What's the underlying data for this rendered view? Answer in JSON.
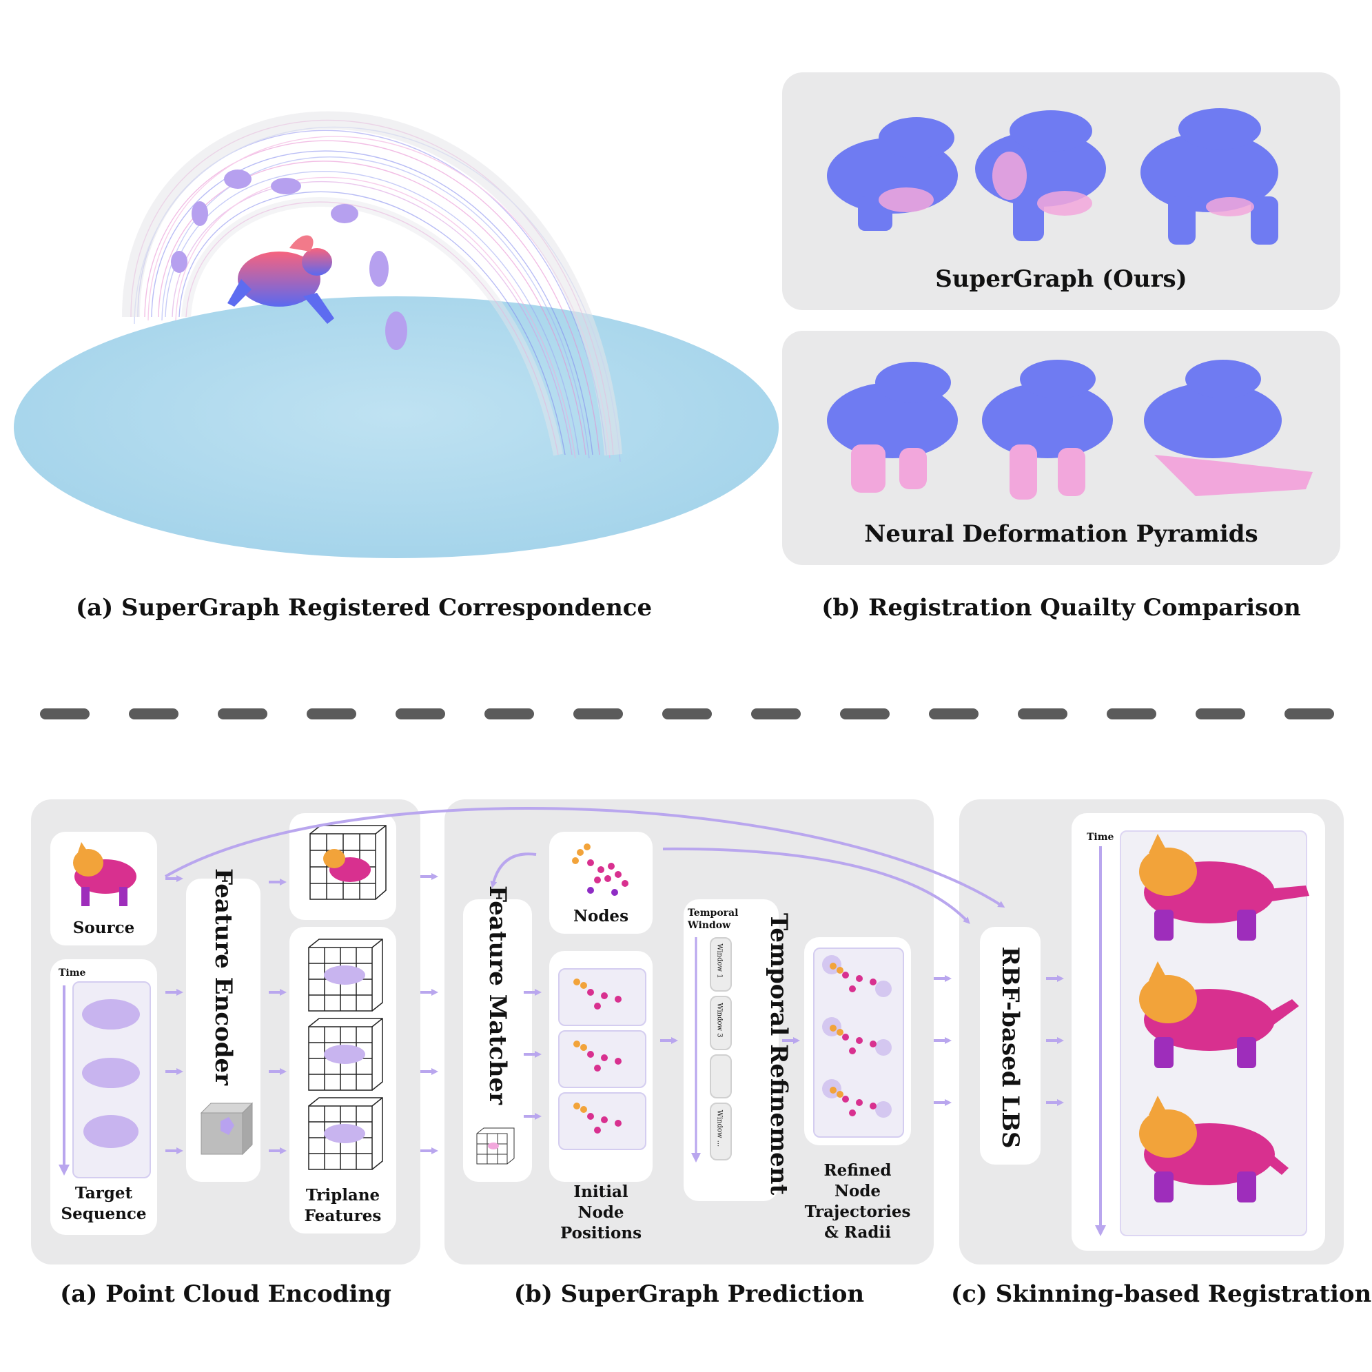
{
  "top": {
    "captions": {
      "left": "(a) SuperGraph Registered Correspondence",
      "right": "(b) Registration Quailty Comparison"
    },
    "methods": [
      "SuperGraph (Ours)",
      "Neural Deformation Pyramids"
    ]
  },
  "pipeline": {
    "captions": {
      "a": "(a) Point Cloud Encoding",
      "b": "(b) SuperGraph Prediction",
      "c": "(c) Skinning-based Registration"
    },
    "labels": {
      "source": "Source",
      "time": "Time",
      "target": [
        "Target",
        "Sequence"
      ],
      "feature_encoder": "Feature Encoder",
      "triplane": [
        "Triplane",
        "Features"
      ],
      "feature_matcher": "Feature Matcher",
      "nodes": "Nodes",
      "initial": [
        "Initial",
        "Node",
        "Positions"
      ],
      "temporal_window": [
        "Temporal",
        "Window"
      ],
      "windows": [
        "Window 1",
        "Window 3",
        "Window ..."
      ],
      "temporal_refinement": "Temporal Refinement",
      "refined": [
        "Refined",
        "Node",
        "Trajectories",
        "& Radii"
      ],
      "rbf": "RBF-based LBS",
      "time_right": "Time"
    }
  },
  "colors": {
    "panel_bg": "#e9e9ea",
    "arrow": "#b9a6ee",
    "ground": "#a9d7ea",
    "blue_mesh": "#6f7bf2",
    "pink": "#f07ac8",
    "orange": "#f2a33a",
    "magenta": "#d8308f",
    "dash": "#5b5b5b"
  }
}
